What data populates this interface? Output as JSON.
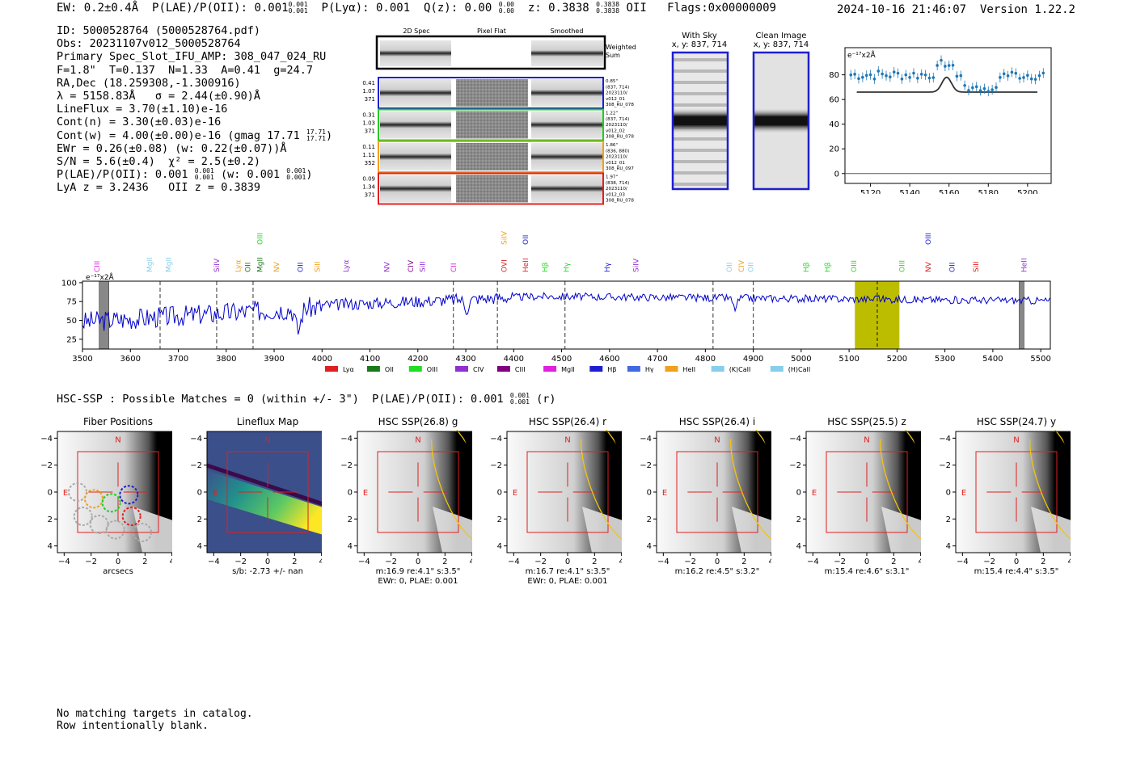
{
  "header": {
    "ew": "EW: 0.2±0.4Å",
    "plae_label": "P(LAE)/P(OII): 0.001",
    "plae_hi": "0.001",
    "plae_lo": "0.001",
    "plya": "P(Lyα): 0.001",
    "qz_label": "Q(z): 0.00",
    "qz_hi": "0.00",
    "qz_lo": "0.00",
    "z_label": "z: 0.3838",
    "z_hi": "0.3838",
    "z_lo": "0.3838",
    "z_line": "OII",
    "flags": "Flags:0x00000009",
    "timestamp": "2024-10-16 21:46:07",
    "version": "Version 1.22.2"
  },
  "info": {
    "id": "ID: 5000528764 (5000528764.pdf)",
    "obs": "Obs: 20231107v012_5000528764",
    "primary": "Primary Spec_Slot_IFU_AMP: 308_047_024_RU",
    "fit": "F=1.8\"  T=0.137  N=1.33  A=0.41  g=24.7",
    "radec": "RA,Dec (18.259308,-1.300916)",
    "lambda_sigma": "λ = 5158.83Å   σ = 2.44(±0.90)Å",
    "lineflux": "LineFlux = 3.70(±1.10)e-16",
    "contn": "Cont(n) = 3.30(±0.03)e-16",
    "contw": "Cont(w) = 4.00(±0.00)e-16 (gmag 17.71",
    "contw_hi": "17.71",
    "contw_lo": "17.71",
    "ewr": "EWr = 0.26(±0.08) (w: 0.22(±0.07))Å",
    "sn": "S/N = 5.6(±0.4)  χ² = 2.5(±0.2)",
    "plae": "P(LAE)/P(OII): 0.001",
    "plae_hi": "0.001",
    "plae_lo": "0.001",
    "plae_w": "(w: 0.001",
    "plae_w_hi": "0.001",
    "plae_w_lo": "0.001",
    "lya_oii": "LyA z = 3.2436   OII z = 0.3839"
  },
  "cutouts": {
    "col_headers": [
      "2D Spec",
      "Pixel Flat",
      "Smoothed"
    ],
    "weighted": "Weighted Sum",
    "rows": [
      {
        "vals": [
          "0.41",
          "1.07",
          "371"
        ],
        "notes": [
          "0.85\"",
          "(837, 714)",
          "2023110/",
          "v012_01",
          "308_RU_078"
        ],
        "color": "#1f1fd0"
      },
      {
        "vals": [
          "0.31",
          "1.03",
          "371"
        ],
        "notes": [
          "1.22\"",
          "(837, 714)",
          "2023110/",
          "v012_02",
          "308_RU_078"
        ],
        "color": "#22cc22"
      },
      {
        "vals": [
          "0.11",
          "1.11",
          "352"
        ],
        "notes": [
          "1.86\"",
          "(836, 880)",
          "2023110/",
          "v012_01",
          "308_RU_097"
        ],
        "color": "#f0a020"
      },
      {
        "vals": [
          "0.09",
          "1.34",
          "371"
        ],
        "notes": [
          "1.97\"",
          "(838, 714)",
          "2023110/",
          "v012_03",
          "308_RU_078"
        ],
        "color": "#e02020"
      }
    ],
    "with_sky": "With Sky",
    "clean": "Clean Image",
    "xy": "x, y: 837, 714"
  },
  "zoom_chart": {
    "type": "scatter",
    "unit_label": "e⁻¹⁷x2Å",
    "x_ticks": [
      5120,
      5140,
      5160,
      5180,
      5200
    ],
    "y_ticks": [
      0,
      20,
      40,
      60,
      80
    ],
    "xlim": [
      5107,
      5212
    ],
    "ylim": [
      -8,
      102
    ],
    "baseline": 66,
    "gauss_peak": 78,
    "gauss_center": 5158.8,
    "gauss_sigma": 2.44
  },
  "spectrum": {
    "type": "line",
    "unit_label": "e⁻¹⁷x2Å",
    "xlim": [
      3500,
      5520
    ],
    "ylim": [
      12,
      102
    ],
    "x_ticks": [
      3500,
      3600,
      3700,
      3800,
      3900,
      4000,
      4100,
      4200,
      4300,
      4400,
      4500,
      4600,
      4700,
      4800,
      4900,
      5000,
      5100,
      5200,
      5300,
      5400,
      5500
    ],
    "y_ticks": [
      25,
      50,
      75,
      100
    ],
    "highlight": [
      5112,
      5205
    ],
    "line_marker": 5158.8,
    "bad_bands": [
      [
        3535,
        3555
      ],
      [
        5455,
        5465
      ]
    ],
    "dashed": [
      3662,
      3780,
      3856,
      4274,
      4366,
      4507,
      4816,
      4900
    ],
    "lines": [
      {
        "label": "CIII",
        "x": 3530,
        "row": 1,
        "color": "#e020e0"
      },
      {
        "label": "MgII",
        "x": 3640,
        "row": 1,
        "color": "#87ceeb"
      },
      {
        "label": "MgII",
        "x": 3680,
        "row": 1,
        "color": "#87ceeb"
      },
      {
        "label": "SiIV",
        "x": 3780,
        "row": 1,
        "color": "#9030d0"
      },
      {
        "label": "Lyα",
        "x": 3825,
        "row": 1,
        "color": "#f0a020"
      },
      {
        "label": "OII",
        "x": 3845,
        "row": 1,
        "color": "#1a7a1a"
      },
      {
        "label": "MgII",
        "x": 3870,
        "row": 1,
        "color": "#1a7a1a"
      },
      {
        "label": "OIII",
        "x": 3870,
        "row": 2,
        "color": "#22dd22"
      },
      {
        "label": "NV",
        "x": 3905,
        "row": 1,
        "color": "#f0a020"
      },
      {
        "label": "OII",
        "x": 3955,
        "row": 1,
        "color": "#1f1fd0"
      },
      {
        "label": "SiII",
        "x": 3990,
        "row": 1,
        "color": "#f0a020"
      },
      {
        "label": "Lyα",
        "x": 4050,
        "row": 1,
        "color": "#9030d0"
      },
      {
        "label": "NV",
        "x": 4135,
        "row": 1,
        "color": "#9030d0"
      },
      {
        "label": "CIV",
        "x": 4185,
        "row": 1,
        "color": "#800080"
      },
      {
        "label": "SiII",
        "x": 4210,
        "row": 1,
        "color": "#9030d0"
      },
      {
        "label": "CII",
        "x": 4275,
        "row": 1,
        "color": "#e020e0"
      },
      {
        "label": "OVI",
        "x": 4380,
        "row": 1,
        "color": "#e02020"
      },
      {
        "label": "SiIV",
        "x": 4380,
        "row": 2,
        "color": "#f0a020"
      },
      {
        "label": "HeII",
        "x": 4425,
        "row": 1,
        "color": "#e02020"
      },
      {
        "label": "OII",
        "x": 4425,
        "row": 2,
        "color": "#1f1fd0"
      },
      {
        "label": "Hβ",
        "x": 4465,
        "row": 1,
        "color": "#22dd22"
      },
      {
        "label": "Hγ",
        "x": 4510,
        "row": 1,
        "color": "#22dd22"
      },
      {
        "label": "Hγ",
        "x": 4595,
        "row": 1,
        "color": "#1f1fd0"
      },
      {
        "label": "SiIV",
        "x": 4655,
        "row": 1,
        "color": "#9030d0"
      },
      {
        "label": "OII",
        "x": 4850,
        "row": 1,
        "color": "#87ceeb"
      },
      {
        "label": "CIV",
        "x": 4875,
        "row": 1,
        "color": "#f0a020"
      },
      {
        "label": "OII",
        "x": 4895,
        "row": 1,
        "color": "#87ceeb"
      },
      {
        "label": "Hβ",
        "x": 5010,
        "row": 1,
        "color": "#22dd22"
      },
      {
        "label": "Hβ",
        "x": 5055,
        "row": 1,
        "color": "#22dd22"
      },
      {
        "label": "OIII",
        "x": 5110,
        "row": 1,
        "color": "#22dd22"
      },
      {
        "label": "OIII",
        "x": 5210,
        "row": 1,
        "color": "#22dd22"
      },
      {
        "label": "NV",
        "x": 5265,
        "row": 1,
        "color": "#e02020"
      },
      {
        "label": "OIII",
        "x": 5265,
        "row": 2,
        "color": "#1f1fd0"
      },
      {
        "label": "OII",
        "x": 5315,
        "row": 1,
        "color": "#1f1fd0"
      },
      {
        "label": "SiII",
        "x": 5365,
        "row": 1,
        "color": "#e02020"
      },
      {
        "label": "HeII",
        "x": 5465,
        "row": 1,
        "color": "#9030d0"
      }
    ],
    "legend": [
      {
        "label": "Lyα",
        "color": "#e02020"
      },
      {
        "label": "OII",
        "color": "#1a7a1a"
      },
      {
        "label": "OIII",
        "color": "#22dd22"
      },
      {
        "label": "CIV",
        "color": "#9030d0"
      },
      {
        "label": "CIII",
        "color": "#800080"
      },
      {
        "label": "MgII",
        "color": "#e020e0"
      },
      {
        "label": "Hβ",
        "color": "#1f1fd0"
      },
      {
        "label": "Hγ",
        "color": "#4169e1"
      },
      {
        "label": "HeII",
        "color": "#f0a020"
      },
      {
        "label": "(K)CaII",
        "color": "#87ceeb"
      },
      {
        "label": "(H)CaII",
        "color": "#87ceeb"
      }
    ]
  },
  "hsc": {
    "line": "HSC-SSP : Possible Matches = 0 (within +/- 3\")  P(LAE)/P(OII): 0.001",
    "line_hi": "0.001",
    "line_lo": "0.001",
    "line_band": "(r)",
    "ticks": [
      "−4",
      "−2",
      "0",
      "2",
      "4"
    ],
    "n_label": "N",
    "e_label": "E",
    "panels": [
      {
        "title": "Fiber Positions",
        "caption1": "arcsecs",
        "caption2": ""
      },
      {
        "title": "Lineflux Map",
        "caption1": "s/b: -2.73 +/- nan",
        "caption2": ""
      },
      {
        "title": "HSC SSP(26.8) g",
        "caption1": "m:16.9  re:4.1\"  s:3.5\"",
        "caption2": "EWr: 0, PLAE: 0.001"
      },
      {
        "title": "HSC SSP(26.4) r",
        "caption1": "m:16.7  re:4.1\"  s:3.5\"",
        "caption2": "EWr: 0, PLAE: 0.001"
      },
      {
        "title": "HSC SSP(26.4) i",
        "caption1": "m:16.2  re:4.5\"  s:3.2\"",
        "caption2": ""
      },
      {
        "title": "HSC SSP(25.5) z",
        "caption1": "m:15.4  re:4.6\"  s:3.1\"",
        "caption2": ""
      },
      {
        "title": "HSC SSP(24.7) y",
        "caption1": "m:15.4  re:4.4\"  s:3.5\"",
        "caption2": ""
      }
    ]
  },
  "footer": {
    "line1": "No matching targets in catalog.",
    "line2": "Row intentionally blank."
  }
}
